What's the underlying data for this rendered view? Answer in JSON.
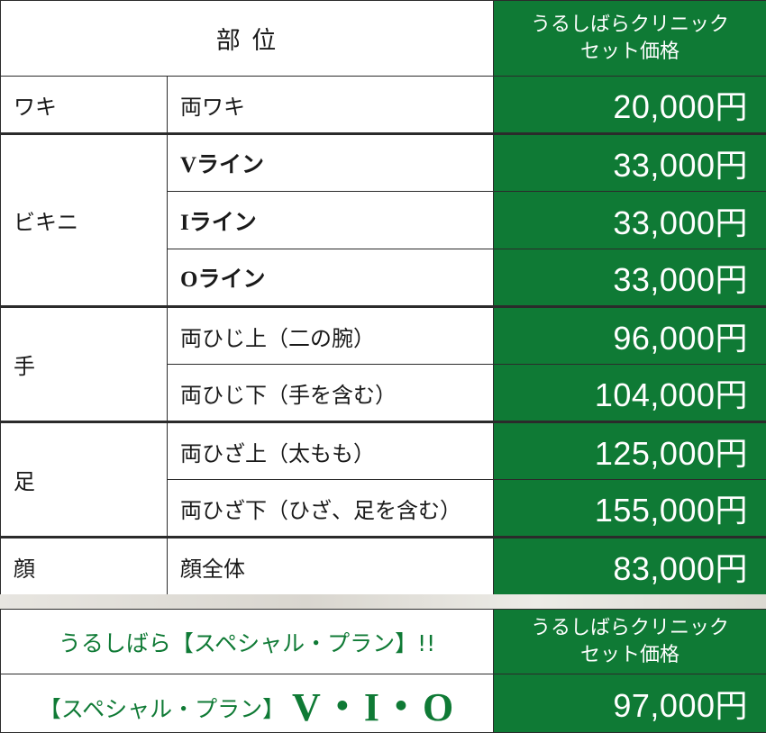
{
  "header": {
    "part_label": "部 位",
    "clinic_price_line1": "うるしばらクリニック",
    "clinic_price_line2": "セット価格"
  },
  "rows": [
    {
      "category": "ワキ",
      "sub": "両ワキ",
      "price": "20,000円"
    },
    {
      "category": "ビキニ",
      "sub": "Vライン",
      "price": "33,000円"
    },
    {
      "category": "",
      "sub": "Iライン",
      "price": "33,000円"
    },
    {
      "category": "",
      "sub": "Oライン",
      "price": "33,000円"
    },
    {
      "category": "手",
      "sub": "両ひじ上（二の腕）",
      "price": "96,000円"
    },
    {
      "category": "",
      "sub": "両ひじ下（手を含む）",
      "price": "104,000円"
    },
    {
      "category": "足",
      "sub": "両ひざ上（太もも）",
      "price": "125,000円"
    },
    {
      "category": "",
      "sub": "両ひざ下（ひざ、足を含む）",
      "price": "155,000円"
    },
    {
      "category": "顔",
      "sub": "顔全体",
      "price": "83,000円"
    }
  ],
  "special": {
    "title": "うるしばら【スペシャル・プラン】!!",
    "price_header_line1": "うるしばらクリニック",
    "price_header_line2": "セット価格",
    "plan_prefix": "【スペシャル・プラン】",
    "plan_name": "V・I・O",
    "price": "97,000円"
  },
  "colors": {
    "accent_green": "#0f7a35",
    "border": "#2b2b2b"
  }
}
